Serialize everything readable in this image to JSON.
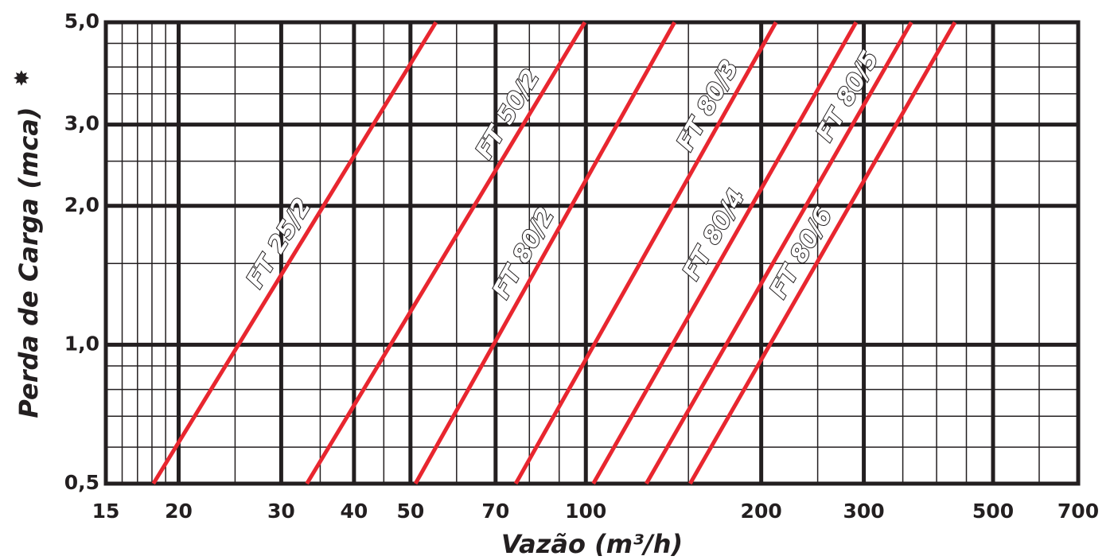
{
  "chart_data": {
    "type": "line",
    "xlabel": "Vazão (m³/h)",
    "ylabel": "Perda de Carga (mca)",
    "ylabel_mark": "✸",
    "xscale": "log",
    "yscale": "log",
    "xlim": [
      15,
      700
    ],
    "ylim": [
      0.5,
      5
    ],
    "xticks": [
      15,
      20,
      30,
      40,
      50,
      70,
      100,
      200,
      300,
      500,
      700
    ],
    "yticks": [
      {
        "value": 0.5,
        "label": "0,5"
      },
      {
        "value": 1,
        "label": "1,0"
      },
      {
        "value": 2,
        "label": "2,0"
      },
      {
        "value": 3,
        "label": "3,0"
      },
      {
        "value": 5,
        "label": "5,0"
      }
    ],
    "x_minor_grid": [
      16,
      17,
      18,
      19,
      25,
      35,
      45,
      60,
      80,
      90,
      150,
      250,
      350,
      400,
      450,
      600
    ],
    "y_minor_grid": [
      0.6,
      0.7,
      0.8,
      0.9,
      1.5,
      2.5,
      3.5,
      4,
      4.5
    ],
    "grid": true,
    "series": [
      {
        "name": "FT 25/2",
        "color": "#e8262f",
        "x": [
          18.1,
          55.3
        ],
        "values": [
          0.5,
          5
        ]
      },
      {
        "name": "FT 50/2",
        "color": "#e8262f",
        "x": [
          33.2,
          99.6
        ],
        "values": [
          0.5,
          5
        ]
      },
      {
        "name": "FT 80/2",
        "color": "#e8262f",
        "x": [
          51,
          142
        ],
        "values": [
          0.5,
          5
        ]
      },
      {
        "name": "FT 80/3",
        "color": "#e8262f",
        "x": [
          75.8,
          212
        ],
        "values": [
          0.5,
          5
        ]
      },
      {
        "name": "FT 80/4",
        "color": "#e8262f",
        "x": [
          103,
          291
        ],
        "values": [
          0.5,
          5
        ]
      },
      {
        "name": "FT 80/5",
        "color": "#e8262f",
        "x": [
          127,
          362
        ],
        "values": [
          0.5,
          5
        ]
      },
      {
        "name": "FT 80/6",
        "color": "#e8262f",
        "x": [
          151,
          430
        ],
        "values": [
          0.5,
          5
        ]
      }
    ]
  }
}
